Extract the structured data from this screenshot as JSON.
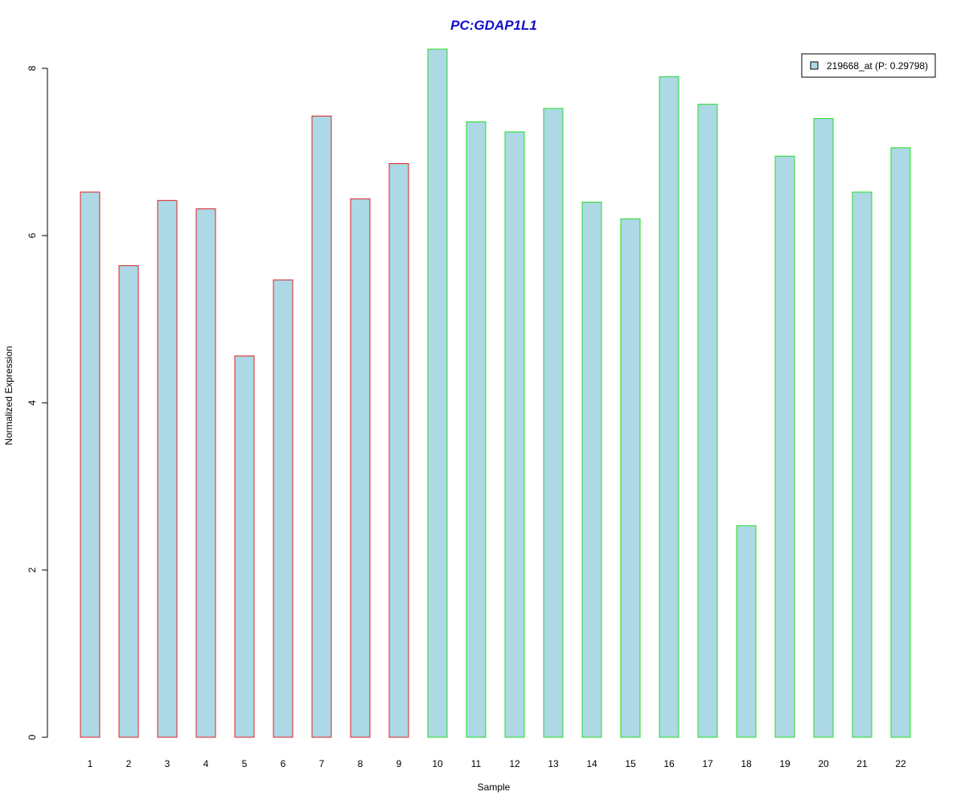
{
  "chart_data": {
    "type": "bar",
    "title": "PC:GDAP1L1",
    "xlabel": "Sample",
    "ylabel": "Normalized Expression",
    "categories": [
      "1",
      "2",
      "3",
      "4",
      "5",
      "6",
      "7",
      "8",
      "9",
      "10",
      "11",
      "12",
      "13",
      "14",
      "15",
      "16",
      "17",
      "18",
      "19",
      "20",
      "21",
      "22"
    ],
    "series": [
      {
        "name": "219668_at (P: 0.29798)",
        "values": [
          6.52,
          5.64,
          6.42,
          6.32,
          4.56,
          5.47,
          7.43,
          6.44,
          6.86,
          8.23,
          7.36,
          7.24,
          7.52,
          6.4,
          6.2,
          7.9,
          7.57,
          2.53,
          6.95,
          7.4,
          6.52,
          7.05
        ]
      }
    ],
    "bar_fill": "#add8e6",
    "group_borders": [
      {
        "samples": [
          "1",
          "2",
          "3",
          "4",
          "5",
          "6",
          "7",
          "8",
          "9"
        ],
        "color": "#dd2222"
      },
      {
        "samples": [
          "10",
          "11",
          "12",
          "13",
          "14",
          "15",
          "16",
          "17",
          "18",
          "19",
          "20",
          "21",
          "22"
        ],
        "color": "#22dd22"
      }
    ],
    "title_color": "#1010cc",
    "yticks": [
      0,
      2,
      4,
      6,
      8
    ],
    "ylim": [
      0,
      8.23
    ],
    "legend_position": "top-right",
    "grid": false
  }
}
